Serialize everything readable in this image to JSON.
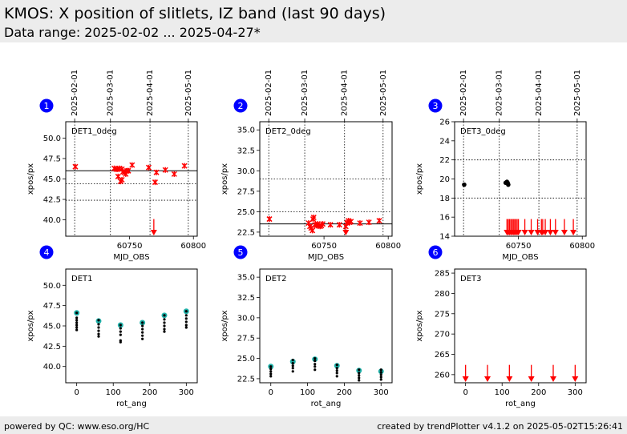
{
  "header": {
    "title": "KMOS: X position of slitlets, IZ band (last 90 days)",
    "subtitle": "Data range: 2025-02-02 ... 2025-04-27*"
  },
  "footer": {
    "left": "powered by QC: www.eso.org/HC",
    "right": "created by trendPlotter v4.1.2 on 2025-05-02T15:26:41"
  },
  "colors": {
    "badge": "#0000ff",
    "marker": "#ff0000",
    "dot": "#000000",
    "ring": "#20b2aa"
  },
  "chart_data": [
    {
      "badge": "1",
      "type": "scatter",
      "label": "DET1_0deg",
      "xlabel": "MJD_OBS",
      "ylabel": "xpos/px",
      "xlim": [
        60700,
        60803
      ],
      "ylim": [
        38,
        52
      ],
      "xticks": [
        60750,
        60800
      ],
      "yticks": [
        40.0,
        42.5,
        45.0,
        47.5,
        50.0
      ],
      "date_ticks": [
        {
          "x": 60707,
          "label": "2025-02-01"
        },
        {
          "x": 60735,
          "label": "2025-03-01"
        },
        {
          "x": 60766,
          "label": "2025-04-01"
        },
        {
          "x": 60796,
          "label": "2025-05-01"
        }
      ],
      "ref_line": 46.0,
      "limit_lines": [
        44.4,
        42.4
      ],
      "points": [
        [
          60707.5,
          46.5
        ],
        [
          60738,
          46.3
        ],
        [
          60739.5,
          46.2
        ],
        [
          60740.5,
          46.2
        ],
        [
          60741,
          45.3
        ],
        [
          60742,
          46.3
        ],
        [
          60743,
          44.7
        ],
        [
          60744,
          44.9
        ],
        [
          60744,
          46.2
        ],
        [
          60745,
          45.9
        ],
        [
          60746,
          45.8
        ],
        [
          60747,
          45.6
        ],
        [
          60748,
          46.0
        ],
        [
          60749,
          46.0
        ],
        [
          60752,
          46.7
        ],
        [
          60765,
          46.4
        ],
        [
          60770,
          44.6
        ],
        [
          60771,
          45.8
        ],
        [
          60778,
          46.1
        ],
        [
          60785,
          45.6
        ],
        [
          60793,
          46.6
        ]
      ],
      "out_of_range": [
        60769
      ]
    },
    {
      "badge": "2",
      "type": "scatter",
      "label": "DET2_0deg",
      "xlabel": "MJD_OBS",
      "ylabel": "xpos/px",
      "xlim": [
        60700,
        60803
      ],
      "ylim": [
        22,
        36
      ],
      "xticks": [
        60750,
        60800
      ],
      "yticks": [
        22.5,
        25.0,
        27.5,
        30.0,
        32.5,
        35.0
      ],
      "date_ticks": [
        {
          "x": 60707,
          "label": "2025-02-01"
        },
        {
          "x": 60735,
          "label": "2025-03-01"
        },
        {
          "x": 60766,
          "label": "2025-04-01"
        },
        {
          "x": 60796,
          "label": "2025-05-01"
        }
      ],
      "ref_line": 23.5,
      "limit_lines": [
        29.0,
        25.0
      ],
      "points": [
        [
          60707.5,
          24.1
        ],
        [
          60738,
          23.6
        ],
        [
          60739,
          23.2
        ],
        [
          60740,
          23.0
        ],
        [
          60741,
          22.7
        ],
        [
          60741.5,
          24.1
        ],
        [
          60742,
          24.3
        ],
        [
          60743,
          23.4
        ],
        [
          60744,
          23.3
        ],
        [
          60745,
          23.5
        ],
        [
          60746,
          23.3
        ],
        [
          60747,
          23.2
        ],
        [
          60748,
          23.3
        ],
        [
          60749,
          23.5
        ],
        [
          60755,
          23.4
        ],
        [
          60762,
          23.4
        ],
        [
          60767,
          23.2
        ],
        [
          60768,
          23.6
        ],
        [
          60769,
          23.9
        ],
        [
          60770,
          23.7
        ],
        [
          60771,
          23.8
        ],
        [
          60778,
          23.6
        ],
        [
          60785,
          23.7
        ],
        [
          60793,
          23.9
        ]
      ],
      "out_of_range": [
        60767
      ]
    },
    {
      "badge": "3",
      "type": "scatter",
      "label": "DET3_0deg",
      "xlabel": "MJD_OBS",
      "ylabel": "xpos/px",
      "xlim": [
        60700,
        60803
      ],
      "ylim": [
        14,
        26
      ],
      "xticks": [
        60750,
        60800
      ],
      "yticks": [
        14,
        16,
        18,
        20,
        22,
        24,
        26
      ],
      "date_ticks": [
        {
          "x": 60707,
          "label": "2025-02-01"
        },
        {
          "x": 60735,
          "label": "2025-03-01"
        },
        {
          "x": 60766,
          "label": "2025-04-01"
        },
        {
          "x": 60796,
          "label": "2025-05-01"
        }
      ],
      "ref_line": null,
      "limit_lines": [
        22.0,
        18.0
      ],
      "points": [
        [
          60707.5,
          19.4
        ],
        [
          60740,
          19.6
        ],
        [
          60741,
          19.7
        ],
        [
          60741.5,
          19.6
        ],
        [
          60742,
          19.4
        ]
      ],
      "out_of_range": [
        60741,
        60742,
        60743,
        60744,
        60745,
        60746,
        60747,
        60748,
        60749,
        60750,
        60755,
        60760,
        60765,
        60768,
        60769,
        60771,
        60775,
        60779,
        60786,
        60793
      ]
    },
    {
      "badge": "4",
      "type": "scatter",
      "label": "DET1",
      "xlabel": "rot_ang",
      "ylabel": "xpos/px",
      "xlim": [
        -30,
        330
      ],
      "ylim": [
        38,
        52
      ],
      "xticks": [
        0,
        100,
        200,
        300
      ],
      "yticks": [
        40.0,
        42.5,
        45.0,
        47.5,
        50.0
      ],
      "points": [
        [
          0,
          46.6
        ],
        [
          0,
          46.0
        ],
        [
          0,
          45.7
        ],
        [
          0,
          45.4
        ],
        [
          0,
          45.1
        ],
        [
          0,
          44.8
        ],
        [
          0,
          44.5
        ],
        [
          60,
          45.7
        ],
        [
          60,
          45.2
        ],
        [
          60,
          44.8
        ],
        [
          60,
          44.4
        ],
        [
          60,
          44.0
        ],
        [
          60,
          43.7
        ],
        [
          120,
          45.1
        ],
        [
          120,
          44.7
        ],
        [
          120,
          44.3
        ],
        [
          120,
          43.9
        ],
        [
          120,
          43.2
        ],
        [
          120,
          43.0
        ],
        [
          180,
          45.4
        ],
        [
          180,
          45.0
        ],
        [
          180,
          44.6
        ],
        [
          180,
          44.2
        ],
        [
          180,
          43.8
        ],
        [
          180,
          43.4
        ],
        [
          240,
          46.3
        ],
        [
          240,
          45.8
        ],
        [
          240,
          45.4
        ],
        [
          240,
          45.0
        ],
        [
          240,
          44.6
        ],
        [
          240,
          44.3
        ],
        [
          300,
          46.8
        ],
        [
          300,
          46.3
        ],
        [
          300,
          45.9
        ],
        [
          300,
          45.5
        ],
        [
          300,
          45.1
        ],
        [
          300,
          44.8
        ]
      ],
      "means": [
        [
          0,
          46.6
        ],
        [
          60,
          45.6
        ],
        [
          120,
          45.1
        ],
        [
          180,
          45.4
        ],
        [
          240,
          46.3
        ],
        [
          300,
          46.8
        ]
      ]
    },
    {
      "badge": "5",
      "type": "scatter",
      "label": "DET2",
      "xlabel": "rot_ang",
      "ylabel": "xpos/px",
      "xlim": [
        -30,
        330
      ],
      "ylim": [
        22,
        36
      ],
      "xticks": [
        0,
        100,
        200,
        300
      ],
      "yticks": [
        22.5,
        25.0,
        27.5,
        30.0,
        32.5,
        35.0
      ],
      "points": [
        [
          0,
          24.0
        ],
        [
          0,
          23.7
        ],
        [
          0,
          23.4
        ],
        [
          0,
          23.1
        ],
        [
          0,
          22.8
        ],
        [
          60,
          24.8
        ],
        [
          60,
          24.4
        ],
        [
          60,
          24.1
        ],
        [
          60,
          23.8
        ],
        [
          60,
          23.4
        ],
        [
          120,
          25.0
        ],
        [
          120,
          24.7
        ],
        [
          120,
          24.3
        ],
        [
          120,
          24.0
        ],
        [
          120,
          23.6
        ],
        [
          180,
          24.2
        ],
        [
          180,
          23.8
        ],
        [
          180,
          23.5
        ],
        [
          180,
          23.2
        ],
        [
          180,
          22.8
        ],
        [
          240,
          23.6
        ],
        [
          240,
          23.2
        ],
        [
          240,
          22.9
        ],
        [
          240,
          22.6
        ],
        [
          240,
          22.3
        ],
        [
          300,
          23.6
        ],
        [
          300,
          23.3
        ],
        [
          300,
          23.0
        ],
        [
          300,
          22.7
        ],
        [
          300,
          22.4
        ]
      ],
      "means": [
        [
          0,
          24.0
        ],
        [
          60,
          24.6
        ],
        [
          120,
          24.9
        ],
        [
          180,
          24.1
        ],
        [
          240,
          23.5
        ],
        [
          300,
          23.4
        ]
      ]
    },
    {
      "badge": "6",
      "type": "scatter",
      "label": "DET3",
      "xlabel": "rot_ang",
      "ylabel": "xpos/px",
      "xlim": [
        -30,
        330
      ],
      "ylim": [
        258,
        286
      ],
      "xticks": [
        0,
        100,
        200,
        300
      ],
      "yticks": [
        260,
        265,
        270,
        275,
        280,
        285
      ],
      "points": [],
      "means": [],
      "out_of_range": [
        0,
        60,
        120,
        180,
        240,
        300
      ]
    }
  ]
}
